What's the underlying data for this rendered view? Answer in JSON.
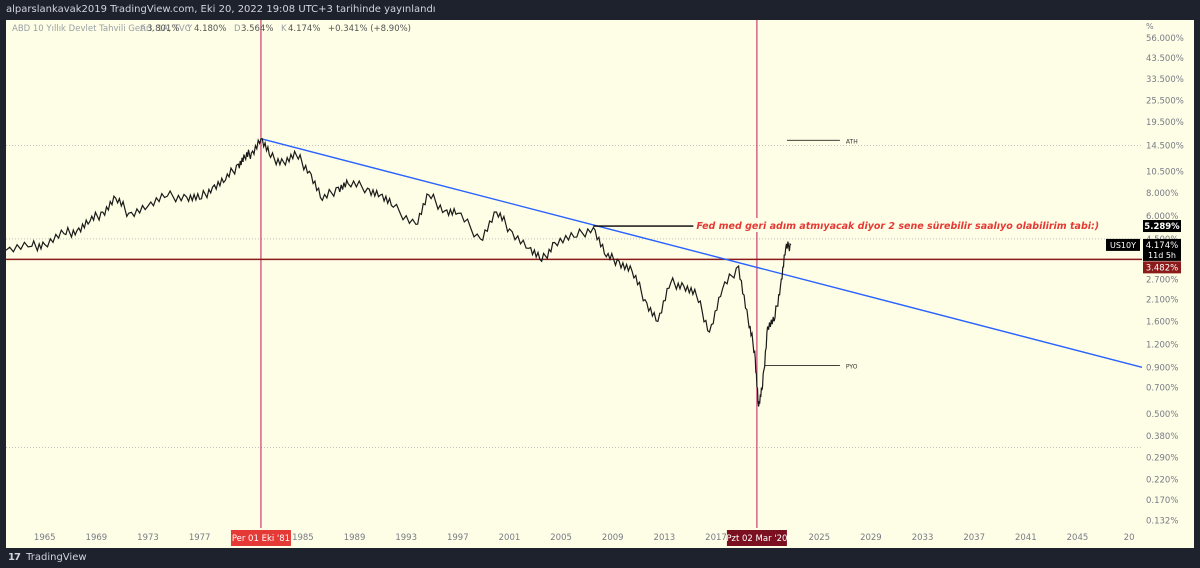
{
  "header": {
    "published": "alparslankavak2019 TradingView.com, Eki 20, 2022 19:08 UTC+3 tarihinde yayınlandı"
  },
  "legend": {
    "symbol": "ABD 10 Yıllık Devlet Tahvili Getiri, 1A, TVC",
    "ohlc": [
      {
        "key": "A",
        "value": "3.801%"
      },
      {
        "key": "Y",
        "value": "4.180%"
      },
      {
        "key": "D",
        "value": "3.564%"
      },
      {
        "key": "K",
        "value": "4.174%"
      }
    ],
    "change": "+0.341% (+8.90%)"
  },
  "footer": {
    "brand": "TradingView",
    "logo": "tradingview-logo"
  },
  "colors": {
    "background": "#fefee6",
    "candles": "#1a1a1a",
    "trendline": "#2962ff",
    "vertical_lines": "#c2185b",
    "horizontal_line": "#8b1a1a",
    "annotation_text": "#e53935"
  },
  "chart_data": {
    "type": "line",
    "title": "ABD 10 Yıllık Devlet Tahvili Getiri, 1A, TVC",
    "y_scale": "log",
    "y_unit": "%",
    "ylim": [
      0.12,
      70
    ],
    "xlim": [
      1962.0,
      2050.0
    ],
    "y_ticks": [
      "56.000%",
      "43.500%",
      "33.500%",
      "25.500%",
      "19.500%",
      "14.500%",
      "10.500%",
      "8.000%",
      "6.000%",
      "4.500%",
      "3.482%",
      "2.700%",
      "2.100%",
      "1.600%",
      "1.200%",
      "0.900%",
      "0.700%",
      "0.500%",
      "0.380%",
      "0.290%",
      "0.220%",
      "0.170%",
      "0.132%"
    ],
    "x_ticks": [
      "1965",
      "1969",
      "1973",
      "1977",
      "1981",
      "1985",
      "1989",
      "1993",
      "1997",
      "2001",
      "2005",
      "2009",
      "2013",
      "2017",
      "2021",
      "2025",
      "2029",
      "2033",
      "2037",
      "2041",
      "2045",
      "20"
    ],
    "series": [
      {
        "x": [
          1962.0,
          1964.0,
          1965.0,
          1966.5,
          1967.5,
          1968.5,
          1969.5,
          1970.5,
          1971.5,
          1973.0,
          1974.5,
          1976.0,
          1977.0,
          1978.0,
          1979.0,
          1980.0,
          1980.5,
          1981.0,
          1981.75,
          1982.5,
          1983.5,
          1984.5,
          1985.5,
          1986.5,
          1987.75,
          1988.5,
          1990.0,
          1991.0,
          1992.0,
          1993.75,
          1994.75,
          1996.0,
          1997.0,
          1998.75,
          2000.0,
          2001.0,
          2002.5,
          2003.5,
          2004.5,
          2006.0,
          2007.5,
          2008.5,
          2009.5,
          2010.5,
          2011.5,
          2012.5,
          2013.5,
          2014.5,
          2015.5,
          2016.5,
          2017.5,
          2018.75,
          2019.5,
          2020.0,
          2020.3,
          2020.6,
          2021.0,
          2021.5,
          2022.0,
          2022.4,
          2022.8
        ],
        "y": [
          3.9,
          4.1,
          4.2,
          4.8,
          5.0,
          5.6,
          6.3,
          7.5,
          6.2,
          6.8,
          7.7,
          7.6,
          7.4,
          8.6,
          9.4,
          11.5,
          12.5,
          13.2,
          15.8,
          12.5,
          11.8,
          12.8,
          10.5,
          7.3,
          8.6,
          9.0,
          8.5,
          7.8,
          6.7,
          5.4,
          7.8,
          6.4,
          6.2,
          4.5,
          6.3,
          5.1,
          4.0,
          3.4,
          4.3,
          4.6,
          5.2,
          3.6,
          3.4,
          3.0,
          2.1,
          1.6,
          2.6,
          2.5,
          2.2,
          1.4,
          2.4,
          3.2,
          1.6,
          1.1,
          0.55,
          0.7,
          1.5,
          1.6,
          2.5,
          4.0,
          4.174
        ]
      }
    ],
    "annotations": [
      {
        "type": "vline",
        "x": 1981.75,
        "label": "Per 01 Eki '81"
      },
      {
        "type": "vline",
        "x": 2020.17,
        "label": "Pzt 02 Mar '20"
      },
      {
        "type": "hline",
        "y": 3.482,
        "label": "3.482%"
      },
      {
        "type": "trendline",
        "x1": 1981.75,
        "y1": 15.8,
        "x2": 2050.0,
        "y2": 0.9
      },
      {
        "type": "segment",
        "x1": 2007.5,
        "x2": 2022.6,
        "y": 5.289,
        "text": "Fed med geri adım atmıyacak diyor  2 sene sürebilir saalıyo olabilirim tabi:)"
      },
      {
        "type": "segment",
        "x1": 2022.5,
        "x2": 2026.6,
        "y": 15.5,
        "text": "ATH"
      },
      {
        "type": "segment",
        "x1": 2020.8,
        "x2": 2026.6,
        "y": 0.92,
        "text": "PYO"
      }
    ],
    "price_labels": [
      {
        "text": "5.289%",
        "style": "annotation"
      },
      {
        "symbol": "US10Y",
        "text": "4.174%",
        "countdown": "11d 5h"
      },
      {
        "text": "3.482%",
        "style": "hline"
      }
    ],
    "grid": true
  }
}
